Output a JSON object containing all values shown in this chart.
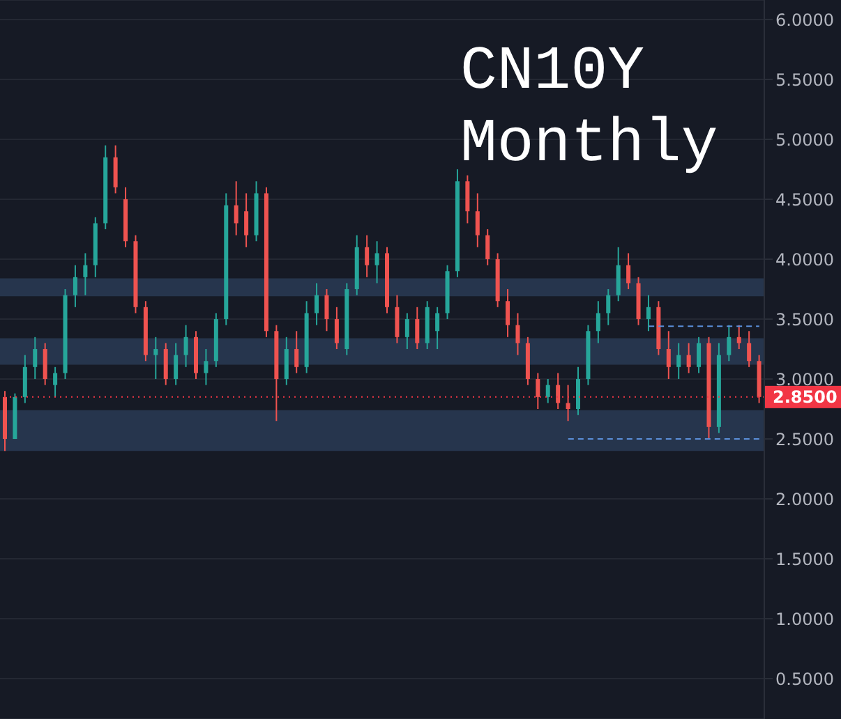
{
  "chart_data": {
    "type": "candlestick",
    "title": "CN10Y Monthly",
    "categories": [
      null,
      null,
      null,
      null,
      null,
      null,
      null,
      null,
      null,
      null,
      null,
      null,
      null,
      null,
      null,
      null,
      null,
      null,
      null,
      null,
      null,
      null,
      null,
      null,
      null,
      null,
      null,
      null,
      null,
      null,
      null,
      null,
      null,
      null,
      null,
      null,
      null,
      null,
      null,
      null,
      null,
      null,
      null,
      null,
      null,
      null,
      null,
      null,
      null,
      null,
      null,
      null,
      null,
      null,
      null,
      null,
      null,
      null,
      null,
      null,
      null,
      null,
      null,
      null,
      null,
      null,
      null,
      null,
      null,
      null,
      null,
      null,
      null,
      null,
      null,
      null
    ],
    "ohlc": [
      [
        2.85,
        2.9,
        2.4,
        2.5
      ],
      [
        2.5,
        2.88,
        2.5,
        2.85
      ],
      [
        2.85,
        3.2,
        2.8,
        3.1
      ],
      [
        3.1,
        3.35,
        3.0,
        3.25
      ],
      [
        3.25,
        3.3,
        2.95,
        3.0
      ],
      [
        2.95,
        3.1,
        2.85,
        3.05
      ],
      [
        3.05,
        3.75,
        3.0,
        3.7
      ],
      [
        3.7,
        3.95,
        3.6,
        3.85
      ],
      [
        3.85,
        4.05,
        3.7,
        3.95
      ],
      [
        3.95,
        4.35,
        3.85,
        4.3
      ],
      [
        4.3,
        4.95,
        4.25,
        4.85
      ],
      [
        4.85,
        4.95,
        4.55,
        4.6
      ],
      [
        4.5,
        4.6,
        4.1,
        4.15
      ],
      [
        4.15,
        4.2,
        3.55,
        3.6
      ],
      [
        3.6,
        3.65,
        3.15,
        3.2
      ],
      [
        3.2,
        3.35,
        3.0,
        3.25
      ],
      [
        3.25,
        3.3,
        2.95,
        3.0
      ],
      [
        3.0,
        3.3,
        2.95,
        3.2
      ],
      [
        3.2,
        3.45,
        3.1,
        3.35
      ],
      [
        3.35,
        3.4,
        3.0,
        3.05
      ],
      [
        3.05,
        3.25,
        2.95,
        3.15
      ],
      [
        3.15,
        3.55,
        3.1,
        3.5
      ],
      [
        3.5,
        4.55,
        3.45,
        4.45
      ],
      [
        4.45,
        4.65,
        4.2,
        4.3
      ],
      [
        4.4,
        4.55,
        4.1,
        4.2
      ],
      [
        4.2,
        4.65,
        4.15,
        4.55
      ],
      [
        4.55,
        4.6,
        3.35,
        3.4
      ],
      [
        3.4,
        3.45,
        2.65,
        3.0
      ],
      [
        3.0,
        3.35,
        2.95,
        3.25
      ],
      [
        3.25,
        3.4,
        3.05,
        3.1
      ],
      [
        3.1,
        3.65,
        3.05,
        3.55
      ],
      [
        3.55,
        3.8,
        3.45,
        3.7
      ],
      [
        3.7,
        3.75,
        3.4,
        3.5
      ],
      [
        3.5,
        3.6,
        3.25,
        3.3
      ],
      [
        3.25,
        3.8,
        3.2,
        3.75
      ],
      [
        3.75,
        4.2,
        3.7,
        4.1
      ],
      [
        4.1,
        4.2,
        3.85,
        3.95
      ],
      [
        3.95,
        4.15,
        3.8,
        4.05
      ],
      [
        4.05,
        4.1,
        3.55,
        3.6
      ],
      [
        3.6,
        3.7,
        3.3,
        3.35
      ],
      [
        3.35,
        3.55,
        3.25,
        3.5
      ],
      [
        3.5,
        3.6,
        3.25,
        3.3
      ],
      [
        3.3,
        3.65,
        3.25,
        3.6
      ],
      [
        3.4,
        3.6,
        3.25,
        3.55
      ],
      [
        3.55,
        3.95,
        3.5,
        3.9
      ],
      [
        3.9,
        4.75,
        3.85,
        4.65
      ],
      [
        4.65,
        4.7,
        4.3,
        4.4
      ],
      [
        4.4,
        4.55,
        4.1,
        4.2
      ],
      [
        4.2,
        4.25,
        3.95,
        4.0
      ],
      [
        4.0,
        4.05,
        3.6,
        3.65
      ],
      [
        3.65,
        3.75,
        3.35,
        3.45
      ],
      [
        3.45,
        3.55,
        3.2,
        3.3
      ],
      [
        3.3,
        3.35,
        2.95,
        3.0
      ],
      [
        3.0,
        3.05,
        2.75,
        2.85
      ],
      [
        2.85,
        3.0,
        2.8,
        2.95
      ],
      [
        2.95,
        3.05,
        2.75,
        2.8
      ],
      [
        2.8,
        2.95,
        2.65,
        2.75
      ],
      [
        2.75,
        3.1,
        2.7,
        3.0
      ],
      [
        3.0,
        3.45,
        2.95,
        3.4
      ],
      [
        3.4,
        3.65,
        3.3,
        3.55
      ],
      [
        3.55,
        3.75,
        3.45,
        3.7
      ],
      [
        3.7,
        4.1,
        3.65,
        3.95
      ],
      [
        3.95,
        4.05,
        3.75,
        3.8
      ],
      [
        3.8,
        3.85,
        3.45,
        3.5
      ],
      [
        3.5,
        3.7,
        3.4,
        3.6
      ],
      [
        3.6,
        3.65,
        3.2,
        3.25
      ],
      [
        3.25,
        3.4,
        3.0,
        3.1
      ],
      [
        3.1,
        3.3,
        3.0,
        3.2
      ],
      [
        3.2,
        3.3,
        3.05,
        3.1
      ],
      [
        3.1,
        3.35,
        3.05,
        3.3
      ],
      [
        3.3,
        3.35,
        2.5,
        2.6
      ],
      [
        2.6,
        3.3,
        2.55,
        3.2
      ],
      [
        3.2,
        3.45,
        3.15,
        3.35
      ],
      [
        3.35,
        3.45,
        3.25,
        3.3
      ],
      [
        3.3,
        3.4,
        3.1,
        3.15
      ],
      [
        3.15,
        3.2,
        2.8,
        2.85
      ]
    ],
    "colors": [
      "#ef5350",
      "#26a69a",
      "#26a69a",
      "#26a69a",
      "#ef5350",
      "#26a69a",
      "#26a69a",
      "#26a69a",
      "#26a69a",
      "#26a69a",
      "#26a69a",
      "#ef5350",
      "#ef5350",
      "#ef5350",
      "#ef5350",
      "#26a69a",
      "#ef5350",
      "#26a69a",
      "#26a69a",
      "#ef5350",
      "#26a69a",
      "#26a69a",
      "#26a69a",
      "#ef5350",
      "#ef5350",
      "#26a69a",
      "#ef5350",
      "#ef5350",
      "#26a69a",
      "#ef5350",
      "#26a69a",
      "#26a69a",
      "#ef5350",
      "#ef5350",
      "#26a69a",
      "#26a69a",
      "#ef5350",
      "#26a69a",
      "#ef5350",
      "#ef5350",
      "#26a69a",
      "#ef5350",
      "#26a69a",
      "#26a69a",
      "#26a69a",
      "#26a69a",
      "#ef5350",
      "#ef5350",
      "#ef5350",
      "#ef5350",
      "#ef5350",
      "#ef5350",
      "#ef5350",
      "#ef5350",
      "#26a69a",
      "#ef5350",
      "#ef5350",
      "#26a69a",
      "#26a69a",
      "#26a69a",
      "#26a69a",
      "#26a69a",
      "#ef5350",
      "#ef5350",
      "#26a69a",
      "#ef5350",
      "#ef5350",
      "#26a69a",
      "#ef5350",
      "#26a69a",
      "#ef5350",
      "#26a69a",
      "#26a69a",
      "#ef5350",
      "#ef5350",
      "#ef5350"
    ],
    "ylim": [
      0.163,
      6.163
    ],
    "yticks": [
      {
        "value": 0.5,
        "label": "0.5000"
      },
      {
        "value": 1,
        "label": "1.0000"
      },
      {
        "value": 1.5,
        "label": "1.5000"
      },
      {
        "value": 2,
        "label": "2.0000"
      },
      {
        "value": 2.5,
        "label": "2.5000"
      },
      {
        "value": 3,
        "label": "3.0000"
      },
      {
        "value": 3.5,
        "label": "3.5000"
      },
      {
        "value": 4,
        "label": "4.0000"
      },
      {
        "value": 4.5,
        "label": "4.5000"
      },
      {
        "value": 5,
        "label": "5.0000"
      },
      {
        "value": 5.5,
        "label": "5.5000"
      },
      {
        "value": 6,
        "label": "6.0000"
      }
    ],
    "tick_labels": "y",
    "grid": "y",
    "bands": [
      {
        "axis": "y",
        "from": 3.69,
        "to": 3.84,
        "color": "#26354d"
      },
      {
        "axis": "y",
        "from": 3.12,
        "to": 3.34,
        "color": "#26354d"
      },
      {
        "axis": "y",
        "from": 2.4,
        "to": 2.74,
        "color": "#26354d"
      }
    ],
    "ref_lines": [
      {
        "axis": "y",
        "value": 2.85,
        "label": "2.8500",
        "color": "#f23645",
        "line_style": "dotted"
      },
      {
        "axis": "y",
        "value": 3.44,
        "color": "#5b8fd9",
        "line_style": "dashed"
      },
      {
        "axis": "y",
        "value": 2.5,
        "color": "#5b8fd9",
        "line_style": "dashed"
      }
    ]
  }
}
